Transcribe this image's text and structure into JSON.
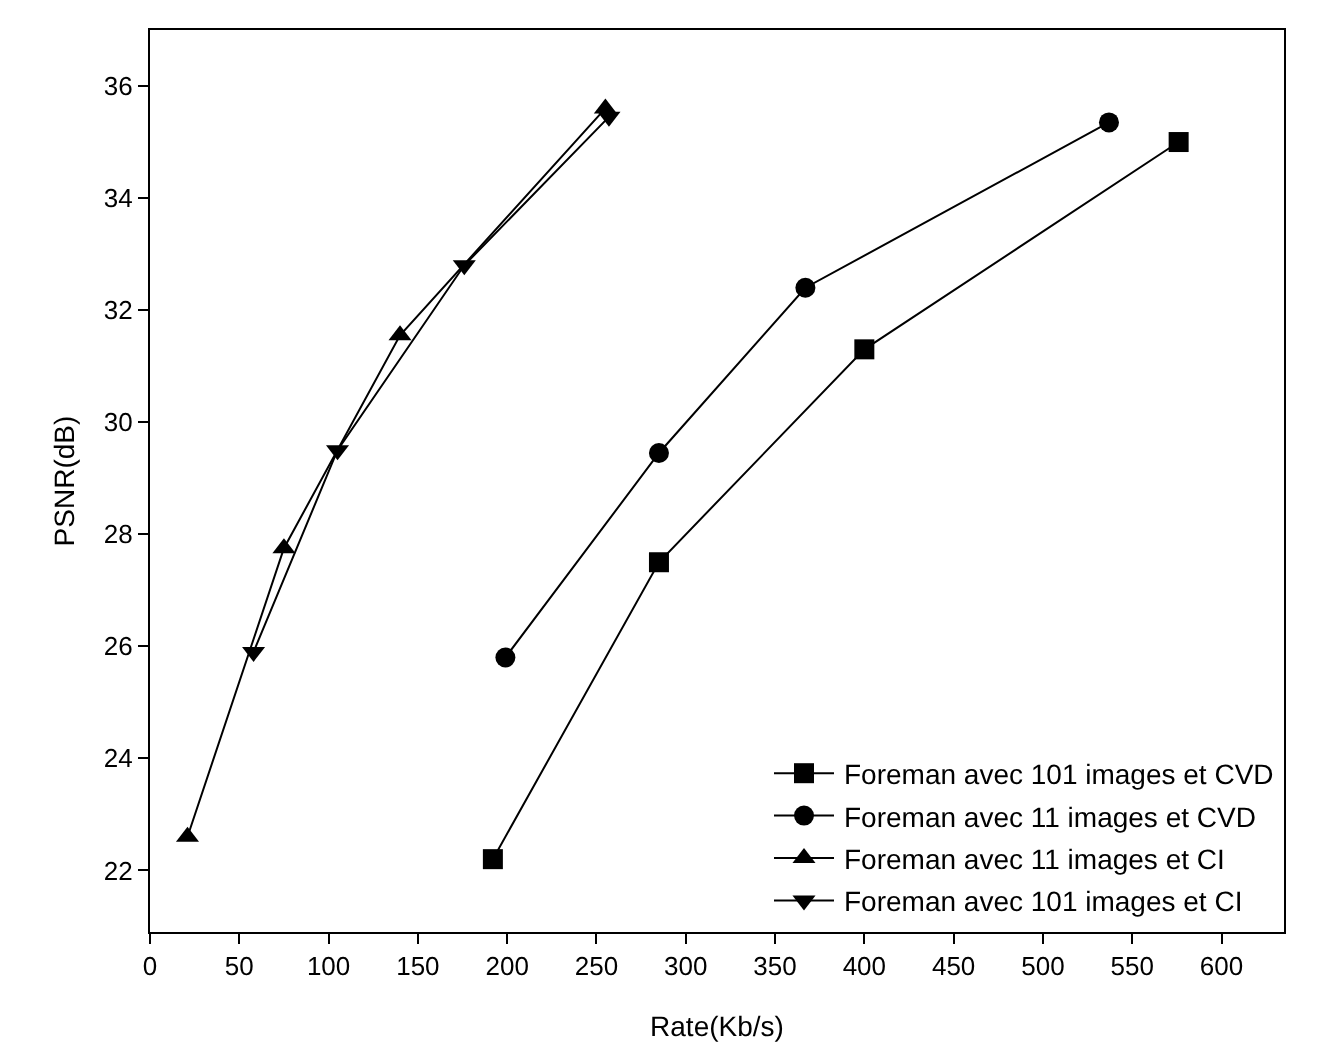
{
  "chart_data": {
    "type": "line",
    "xlabel": "Rate(Kb/s)",
    "ylabel": "PSNR(dB)",
    "xlim": [
      0,
      635
    ],
    "xticks": [
      0,
      50,
      100,
      150,
      200,
      250,
      300,
      350,
      400,
      450,
      500,
      550,
      600
    ],
    "ylim": [
      20.9,
      37
    ],
    "yticks": [
      22,
      24,
      26,
      28,
      30,
      32,
      34,
      36
    ],
    "grid": false,
    "legend": "bottom right",
    "line_style": "solid",
    "series": [
      {
        "name": "Foreman avec 101 images et CVD",
        "color": "#000000",
        "marker": "square",
        "x": [
          192,
          285,
          400,
          576
        ],
        "values": [
          22.2,
          27.5,
          31.3,
          35.0
        ]
      },
      {
        "name": "Foreman avec 11 images et CVD",
        "color": "#000000",
        "marker": "circle",
        "x": [
          199,
          285,
          367,
          537
        ],
        "values": [
          25.8,
          29.45,
          32.4,
          35.35
        ]
      },
      {
        "name": "Foreman avec 11 images et CI",
        "color": "#000000",
        "marker": "triangle",
        "x": [
          21,
          75,
          140,
          255
        ],
        "values": [
          22.6,
          27.75,
          31.55,
          35.6
        ]
      },
      {
        "name": "Foreman avec 101 images et CI",
        "color": "#000000",
        "marker": "triangle-down",
        "x": [
          58,
          105,
          176,
          257
        ],
        "values": [
          25.9,
          29.5,
          32.8,
          35.45
        ]
      }
    ]
  }
}
